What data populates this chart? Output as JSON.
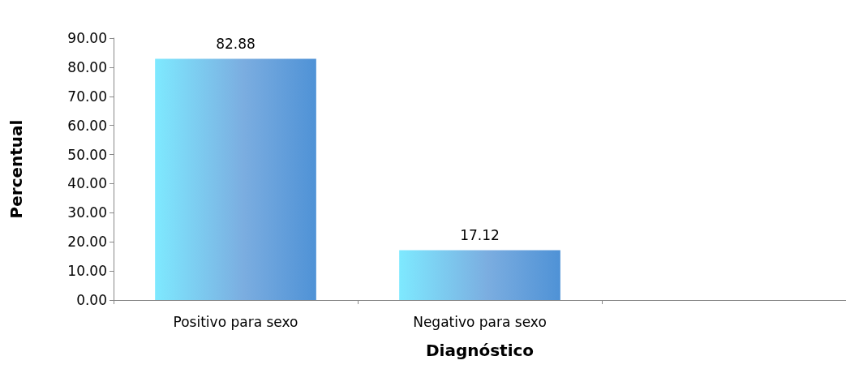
{
  "chart_data": {
    "type": "bar",
    "xlabel": "Diagnóstico",
    "ylabel": "Percentual",
    "categories": [
      "Positivo para sexo",
      "Negativo para sexo",
      null
    ],
    "values": [
      82.88,
      17.12,
      null
    ],
    "color": "#4f92d6",
    "data_labels": true,
    "ylim": [
      0,
      90
    ],
    "yticks": [
      {
        "value": 0,
        "label": "0.00"
      },
      {
        "value": 10,
        "label": "10.00"
      },
      {
        "value": 20,
        "label": "20.00"
      },
      {
        "value": 30,
        "label": "30.00"
      },
      {
        "value": 40,
        "label": "40.00"
      },
      {
        "value": 50,
        "label": "50.00"
      },
      {
        "value": 60,
        "label": "60.00"
      },
      {
        "value": 70,
        "label": "70.00"
      },
      {
        "value": 80,
        "label": "80.00"
      },
      {
        "value": 90,
        "label": "90.00"
      }
    ],
    "grid": false
  }
}
